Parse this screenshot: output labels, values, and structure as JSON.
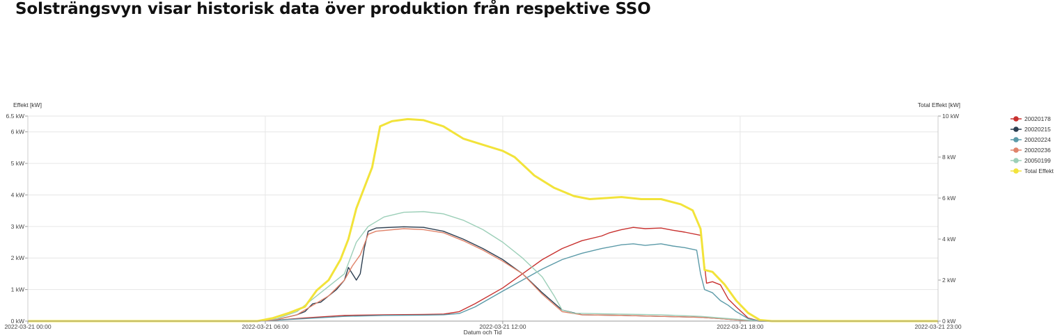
{
  "page": {
    "title": "Solsträngsvyn visar historisk data över produktion från respektive SSO"
  },
  "chart_data": {
    "type": "line",
    "title": "",
    "xlabel": "Datum och Tid",
    "ylabel_left": "Effekt [kW]",
    "ylabel_right": "Total Effekt [kW]",
    "x_range": [
      "2022-03-21 00:00",
      "2022-03-21 23:00"
    ],
    "x_tick_labels": [
      "2022-03-21 00:00",
      "2022-03-21 06:00",
      "2022-03-21 12:00",
      "2022-03-21 18:00",
      "2022-03-21 23:00"
    ],
    "x_tick_hours": [
      0,
      6,
      12,
      18,
      23
    ],
    "ylim_left": [
      0,
      6.5
    ],
    "ylim_right": [
      0,
      10
    ],
    "y_left_ticks": [
      0,
      1,
      2,
      3,
      4,
      5,
      6,
      6.5
    ],
    "y_left_tick_labels": [
      "0 kW",
      "1 kW",
      "2 kW",
      "3 kW",
      "4 kW",
      "5 kW",
      "6 kW",
      "6.5 kW"
    ],
    "y_right_ticks": [
      0,
      2,
      4,
      6,
      8,
      10
    ],
    "y_right_tick_labels": [
      "0 kW",
      "2 kW",
      "4 kW",
      "6 kW",
      "8 kW",
      "10 kW"
    ],
    "grid": true,
    "legend_position": "right",
    "series": [
      {
        "name": "20020178",
        "color": "#c8312f",
        "axis": "left",
        "points": [
          [
            0,
            0
          ],
          [
            5.8,
            0
          ],
          [
            6.3,
            0.03
          ],
          [
            7,
            0.1
          ],
          [
            8,
            0.18
          ],
          [
            9,
            0.2
          ],
          [
            10,
            0.21
          ],
          [
            10.5,
            0.22
          ],
          [
            10.9,
            0.3
          ],
          [
            11.3,
            0.55
          ],
          [
            12,
            1.05
          ],
          [
            12.5,
            1.5
          ],
          [
            13,
            1.95
          ],
          [
            13.5,
            2.3
          ],
          [
            14,
            2.55
          ],
          [
            14.5,
            2.7
          ],
          [
            14.7,
            2.8
          ],
          [
            15,
            2.9
          ],
          [
            15.3,
            2.97
          ],
          [
            15.6,
            2.93
          ],
          [
            16,
            2.95
          ],
          [
            16.3,
            2.88
          ],
          [
            16.6,
            2.82
          ],
          [
            17,
            2.72
          ],
          [
            17.05,
            2.3
          ],
          [
            17.15,
            1.2
          ],
          [
            17.3,
            1.25
          ],
          [
            17.5,
            1.15
          ],
          [
            17.7,
            0.7
          ],
          [
            17.9,
            0.45
          ],
          [
            18.2,
            0.1
          ],
          [
            18.5,
            0
          ],
          [
            23,
            0
          ]
        ]
      },
      {
        "name": "20020215",
        "color": "#2c3e50",
        "axis": "left",
        "points": [
          [
            0,
            0
          ],
          [
            5.8,
            0
          ],
          [
            6.3,
            0.05
          ],
          [
            6.8,
            0.2
          ],
          [
            7,
            0.3
          ],
          [
            7.2,
            0.55
          ],
          [
            7.4,
            0.6
          ],
          [
            7.6,
            0.8
          ],
          [
            7.8,
            1.0
          ],
          [
            8,
            1.3
          ],
          [
            8.1,
            1.7
          ],
          [
            8.2,
            1.5
          ],
          [
            8.3,
            1.3
          ],
          [
            8.4,
            1.5
          ],
          [
            8.5,
            2.3
          ],
          [
            8.6,
            2.85
          ],
          [
            8.8,
            2.95
          ],
          [
            9.5,
            2.99
          ],
          [
            10,
            2.97
          ],
          [
            10.5,
            2.85
          ],
          [
            11,
            2.6
          ],
          [
            11.5,
            2.3
          ],
          [
            12,
            1.95
          ],
          [
            12.5,
            1.5
          ],
          [
            13,
            0.9
          ],
          [
            13.5,
            0.35
          ],
          [
            14,
            0.2
          ],
          [
            15,
            0.18
          ],
          [
            16,
            0.15
          ],
          [
            17,
            0.12
          ],
          [
            17.5,
            0.08
          ],
          [
            18,
            0.03
          ],
          [
            18.5,
            0
          ],
          [
            23,
            0
          ]
        ]
      },
      {
        "name": "20020224",
        "color": "#5b9aa8",
        "axis": "left",
        "points": [
          [
            0,
            0
          ],
          [
            5.8,
            0
          ],
          [
            6.3,
            0.03
          ],
          [
            7,
            0.08
          ],
          [
            8,
            0.15
          ],
          [
            9,
            0.18
          ],
          [
            10,
            0.19
          ],
          [
            10.5,
            0.2
          ],
          [
            10.9,
            0.24
          ],
          [
            11.3,
            0.45
          ],
          [
            12,
            0.95
          ],
          [
            12.5,
            1.3
          ],
          [
            13,
            1.65
          ],
          [
            13.5,
            1.95
          ],
          [
            14,
            2.15
          ],
          [
            14.5,
            2.3
          ],
          [
            15,
            2.42
          ],
          [
            15.3,
            2.45
          ],
          [
            15.6,
            2.4
          ],
          [
            16,
            2.45
          ],
          [
            16.3,
            2.38
          ],
          [
            16.6,
            2.33
          ],
          [
            16.9,
            2.25
          ],
          [
            17,
            1.5
          ],
          [
            17.1,
            1.0
          ],
          [
            17.3,
            0.9
          ],
          [
            17.5,
            0.65
          ],
          [
            17.7,
            0.5
          ],
          [
            17.9,
            0.3
          ],
          [
            18.2,
            0.08
          ],
          [
            18.5,
            0
          ],
          [
            23,
            0
          ]
        ]
      },
      {
        "name": "20020236",
        "color": "#e0836a",
        "axis": "left",
        "points": [
          [
            0,
            0
          ],
          [
            5.8,
            0
          ],
          [
            6.3,
            0.05
          ],
          [
            6.8,
            0.2
          ],
          [
            7.2,
            0.5
          ],
          [
            7.6,
            0.8
          ],
          [
            8,
            1.3
          ],
          [
            8.2,
            1.75
          ],
          [
            8.4,
            2.1
          ],
          [
            8.6,
            2.75
          ],
          [
            8.8,
            2.85
          ],
          [
            9.5,
            2.93
          ],
          [
            10,
            2.9
          ],
          [
            10.5,
            2.8
          ],
          [
            11,
            2.55
          ],
          [
            11.5,
            2.25
          ],
          [
            12,
            1.9
          ],
          [
            12.5,
            1.5
          ],
          [
            13,
            0.85
          ],
          [
            13.5,
            0.3
          ],
          [
            14,
            0.2
          ],
          [
            15,
            0.18
          ],
          [
            16,
            0.15
          ],
          [
            17,
            0.12
          ],
          [
            17.5,
            0.08
          ],
          [
            18,
            0.03
          ],
          [
            18.5,
            0
          ],
          [
            23,
            0
          ]
        ]
      },
      {
        "name": "20050199",
        "color": "#9ccfb8",
        "axis": "left",
        "points": [
          [
            0,
            0
          ],
          [
            5.8,
            0
          ],
          [
            6.3,
            0.08
          ],
          [
            6.8,
            0.3
          ],
          [
            7.2,
            0.7
          ],
          [
            7.6,
            1.1
          ],
          [
            8,
            1.5
          ],
          [
            8.3,
            2.5
          ],
          [
            8.6,
            3.0
          ],
          [
            9,
            3.3
          ],
          [
            9.5,
            3.45
          ],
          [
            10,
            3.47
          ],
          [
            10.5,
            3.4
          ],
          [
            11,
            3.2
          ],
          [
            11.5,
            2.9
          ],
          [
            12,
            2.5
          ],
          [
            12.5,
            2.0
          ],
          [
            13,
            1.4
          ],
          [
            13.3,
            0.8
          ],
          [
            13.5,
            0.35
          ],
          [
            13.8,
            0.25
          ],
          [
            15,
            0.22
          ],
          [
            16,
            0.2
          ],
          [
            17,
            0.15
          ],
          [
            17.5,
            0.1
          ],
          [
            18,
            0.05
          ],
          [
            18.5,
            0
          ],
          [
            23,
            0
          ]
        ]
      },
      {
        "name": "Total Effekt",
        "color": "#f2e33a",
        "axis": "right",
        "points": [
          [
            0,
            0
          ],
          [
            5.8,
            0
          ],
          [
            6.2,
            0.15
          ],
          [
            6.6,
            0.4
          ],
          [
            7,
            0.7
          ],
          [
            7.3,
            1.5
          ],
          [
            7.6,
            2.0
          ],
          [
            7.9,
            3.0
          ],
          [
            8.1,
            4.0
          ],
          [
            8.3,
            5.5
          ],
          [
            8.5,
            6.5
          ],
          [
            8.7,
            7.5
          ],
          [
            8.9,
            9.5
          ],
          [
            9.2,
            9.75
          ],
          [
            9.6,
            9.85
          ],
          [
            10,
            9.8
          ],
          [
            10.5,
            9.5
          ],
          [
            11,
            8.9
          ],
          [
            11.5,
            8.6
          ],
          [
            12,
            8.3
          ],
          [
            12.3,
            8.0
          ],
          [
            12.8,
            7.1
          ],
          [
            13.3,
            6.5
          ],
          [
            13.8,
            6.1
          ],
          [
            14.2,
            5.95
          ],
          [
            14.6,
            6.0
          ],
          [
            15,
            6.05
          ],
          [
            15.5,
            5.95
          ],
          [
            16,
            5.95
          ],
          [
            16.5,
            5.7
          ],
          [
            16.8,
            5.4
          ],
          [
            17,
            4.5
          ],
          [
            17.1,
            2.5
          ],
          [
            17.3,
            2.4
          ],
          [
            17.6,
            1.8
          ],
          [
            17.9,
            1.0
          ],
          [
            18.2,
            0.4
          ],
          [
            18.5,
            0.05
          ],
          [
            18.8,
            0
          ],
          [
            23,
            0
          ]
        ]
      }
    ]
  }
}
